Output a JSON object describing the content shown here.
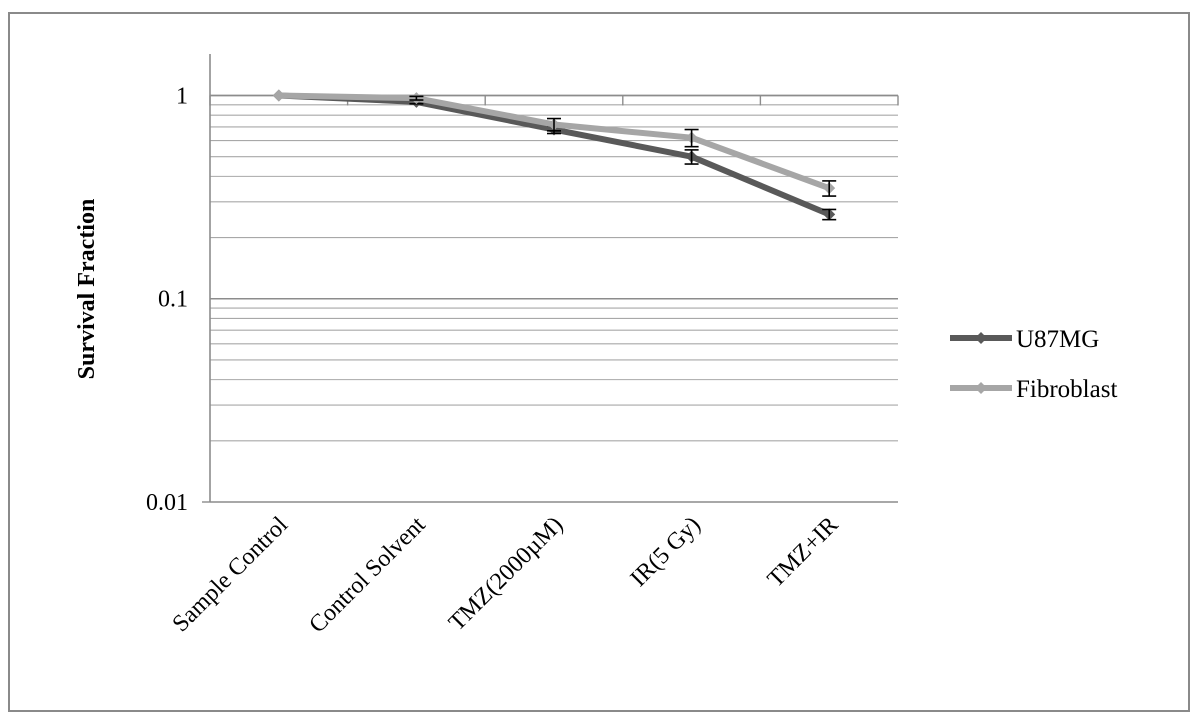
{
  "chart_data": {
    "type": "line",
    "title": "",
    "xlabel": "",
    "ylabel": "Survival Fraction",
    "yscale": "log",
    "ylim": [
      0.01,
      1.6
    ],
    "yticks": [
      "1",
      "0.1",
      "0.01"
    ],
    "categories": [
      "Sample Control",
      "Control Solvent",
      "TMZ(2000µM)",
      "IR(5 Gy)",
      "TMZ+IR"
    ],
    "grid": true,
    "legend_position": "right",
    "series": [
      {
        "name": "U87MG",
        "color": "#595959",
        "values": [
          1.0,
          0.93,
          0.68,
          0.5,
          0.26
        ],
        "errors": [
          0.0,
          0.02,
          0.03,
          0.04,
          0.015
        ]
      },
      {
        "name": "Fibroblast",
        "color": "#a6a6a6",
        "values": [
          1.0,
          0.97,
          0.72,
          0.62,
          0.35
        ],
        "errors": [
          0.0,
          0.02,
          0.05,
          0.06,
          0.03
        ]
      }
    ]
  }
}
